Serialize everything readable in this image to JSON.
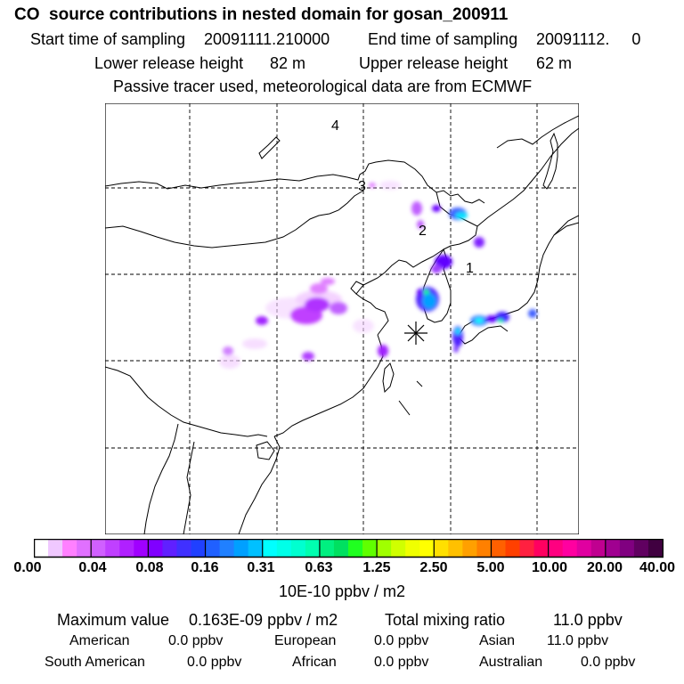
{
  "header": {
    "title": "CO  source contributions in nested domain for gosan_200911",
    "start_label": "Start time of sampling",
    "start_value": "20091111.210000",
    "end_label": "End time of sampling",
    "end_value": "20091112.     0",
    "lower_label": "Lower release height",
    "lower_value": "82 m",
    "upper_label": "Upper release height",
    "upper_value": "62 m",
    "note": "Passive tracer used, meteorological data are from ECMWF"
  },
  "map": {
    "day_markers": [
      "1",
      "2",
      "3",
      "4"
    ],
    "receptor_marker": "asterisk",
    "gridlines": "dashed",
    "colors": [
      "#ffffff",
      "#ff66ff",
      "#a000ff",
      "#5000ff",
      "#0080ff",
      "#00ffff",
      "#00e080",
      "#00ff00",
      "#ffff00",
      "#ff4000",
      "#ff0080",
      "#600060"
    ]
  },
  "colorbar": {
    "ticks": [
      "0.00",
      "0.04",
      "0.08",
      "0.16",
      "0.31",
      "0.63",
      "1.25",
      "2.50",
      "5.00",
      "10.00",
      "20.00",
      "40.00"
    ],
    "unit": "10E-10 ppbv / m2"
  },
  "stats": {
    "max_label": "Maximum value",
    "max_value": "0.163E-09 ppbv / m2",
    "total_label": "Total mixing ratio",
    "total_value": "11.0 ppbv"
  },
  "regions": [
    {
      "name": "American",
      "value": "0.0 ppbv"
    },
    {
      "name": "European",
      "value": "0.0 ppbv"
    },
    {
      "name": "Asian",
      "value": "11.0 ppbv"
    },
    {
      "name": "South American",
      "value": "0.0 ppbv"
    },
    {
      "name": "African",
      "value": "0.0 ppbv"
    },
    {
      "name": "Australian",
      "value": "0.0 ppbv"
    }
  ]
}
